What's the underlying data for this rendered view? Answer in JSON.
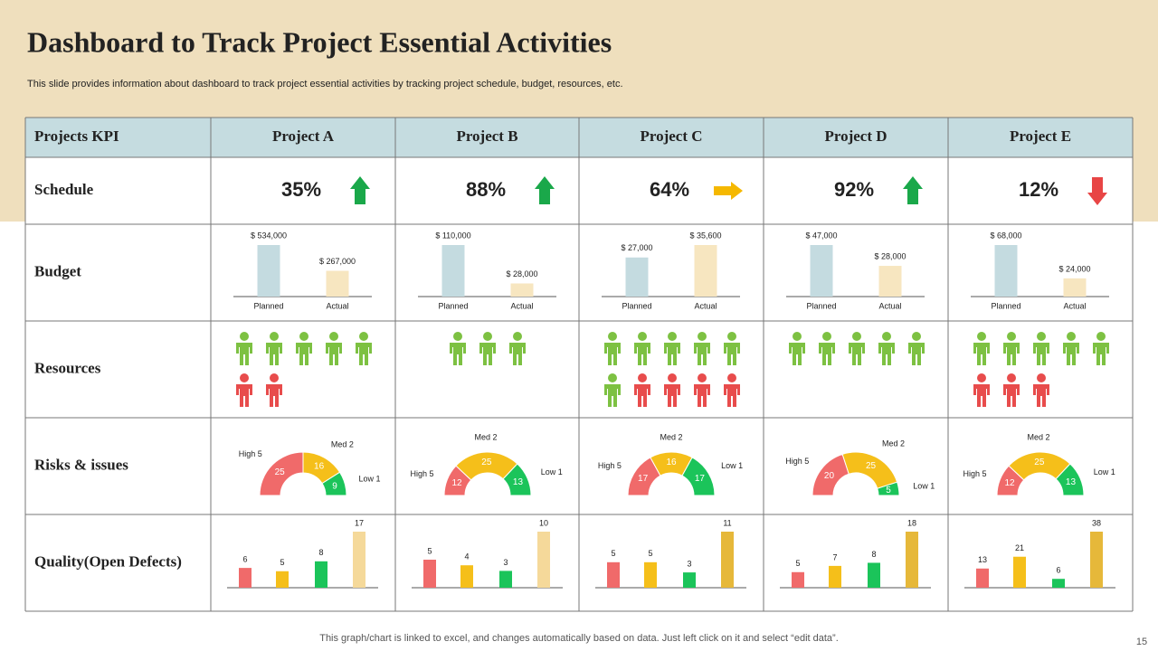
{
  "title": "Dashboard to Track Project Essential Activities",
  "subtitle": "This slide provides information about dashboard to track project essential activities by tracking project schedule, budget, resources, etc.",
  "footer": "This graph/chart is linked to excel,  and changes automatically based on data. Just left click on it and select “edit data”.",
  "page_number": "15",
  "table": {
    "header": [
      "Projects KPI",
      "Project A",
      "Project B",
      "Project C",
      "Project D",
      "Project E"
    ],
    "row_labels": [
      "Schedule",
      "Budget",
      "Resources",
      "Risks & issues",
      "Quality(Open Defects)"
    ]
  },
  "schedule": {
    "values": [
      35,
      88,
      64,
      92,
      12
    ],
    "value_labels": [
      "35%",
      "88%",
      "64%",
      "92%",
      "12%"
    ],
    "trends": [
      "up",
      "up",
      "right",
      "up",
      "down"
    ],
    "trend_colors": {
      "up": "#1aa84a",
      "right": "#f5b800",
      "down": "#e84545"
    }
  },
  "budget": {
    "categories": [
      "Planned",
      "Actual"
    ],
    "colors": [
      "#c4dbe0",
      "#f7e6c0"
    ],
    "projects": [
      {
        "values": [
          534000,
          267000
        ],
        "value_labels": [
          "$ 534,000",
          "$ 267,000"
        ]
      },
      {
        "values": [
          110000,
          28000
        ],
        "value_labels": [
          "$ 110,000",
          "$ 28,000"
        ]
      },
      {
        "values": [
          27000,
          35600
        ],
        "value_labels": [
          "$ 27,000",
          "$ 35,600"
        ]
      },
      {
        "values": [
          47000,
          28000
        ],
        "value_labels": [
          "$ 47,000",
          "$ 28,000"
        ]
      },
      {
        "values": [
          68000,
          24000
        ],
        "value_labels": [
          "$ 68,000",
          "$ 24,000"
        ]
      }
    ]
  },
  "resources": {
    "colors": {
      "green": "#7dc142",
      "red": "#e84c4c"
    },
    "projects": [
      {
        "green": 5,
        "red": 2
      },
      {
        "green": 3,
        "red": 0
      },
      {
        "green": 6,
        "red": 4
      },
      {
        "green": 5,
        "red": 0
      },
      {
        "green": 5,
        "red": 3
      }
    ]
  },
  "risks": {
    "names": [
      "High 5",
      "Med 2",
      "Low 1"
    ],
    "colors": [
      "#f06a6a",
      "#f5bf1a",
      "#1bc45a"
    ],
    "projects": [
      [
        25,
        16,
        9
      ],
      [
        12,
        25,
        13
      ],
      [
        17,
        16,
        17
      ],
      [
        20,
        25,
        5
      ],
      [
        12,
        25,
        13
      ]
    ]
  },
  "quality": {
    "projects": [
      {
        "values": [
          6,
          5,
          8,
          17
        ],
        "colors": [
          "#f06a6a",
          "#f5bf1a",
          "#1bc45a",
          "#f5d99a"
        ]
      },
      {
        "values": [
          5,
          4,
          3,
          10
        ],
        "colors": [
          "#f06a6a",
          "#f5bf1a",
          "#1bc45a",
          "#f5d99a"
        ]
      },
      {
        "values": [
          5,
          5,
          3,
          11
        ],
        "colors": [
          "#f06a6a",
          "#f5bf1a",
          "#1bc45a",
          "#e6b83a"
        ]
      },
      {
        "values": [
          5,
          7,
          8,
          18
        ],
        "colors": [
          "#f06a6a",
          "#f5bf1a",
          "#1bc45a",
          "#e6b83a"
        ]
      },
      {
        "values": [
          13,
          21,
          6,
          38
        ],
        "colors": [
          "#f06a6a",
          "#f5bf1a",
          "#1bc45a",
          "#e6b83a"
        ]
      }
    ]
  }
}
